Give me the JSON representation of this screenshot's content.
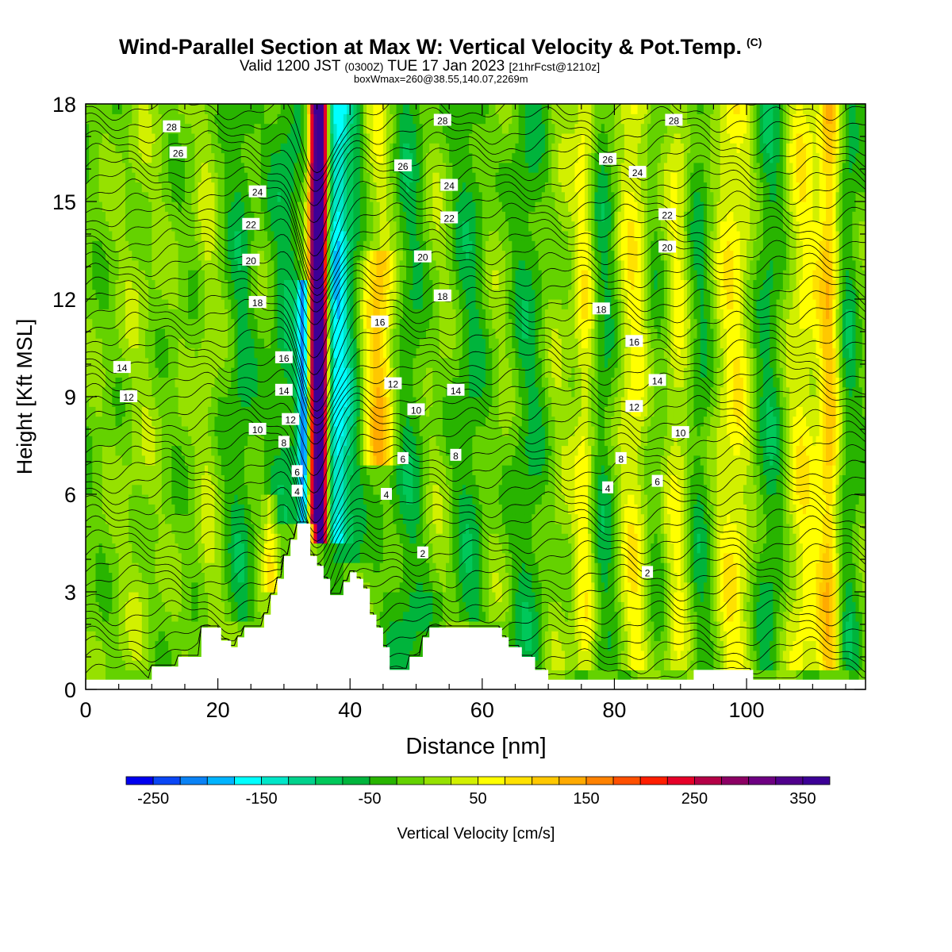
{
  "header": {
    "title": "Wind-Parallel Section at Max W: Vertical Velocity & Pot.Temp.",
    "title_mark": "(C)",
    "valid_prefix": "Valid 1200 JST",
    "valid_utc": "(0300Z)",
    "valid_date": "TUE 17 Jan 2023",
    "forecast": "[21hrFcst@1210z]",
    "boxinfo": "boxWmax=260@38.55,140.07,2269m"
  },
  "chart_data": {
    "type": "heatmap",
    "xlabel": "Distance [nm]",
    "ylabel": "Height [Kft MSL]",
    "xlim": [
      0,
      118
    ],
    "ylim": [
      0,
      18
    ],
    "x_ticks": [
      0,
      20,
      40,
      60,
      80,
      100
    ],
    "y_ticks": [
      0,
      3,
      6,
      9,
      12,
      15,
      18
    ],
    "colorbar": {
      "label": "Vertical Velocity [cm/s]",
      "tick_labels": [
        "-250",
        "-150",
        "-50",
        "50",
        "150",
        "250",
        "350"
      ],
      "tick_values": [
        -250,
        -150,
        -50,
        50,
        150,
        250,
        350
      ],
      "range": [
        -275,
        375
      ],
      "step": 25,
      "colors": [
        "#0000f0",
        "#0a46f5",
        "#0a82f5",
        "#00b4ff",
        "#00ffff",
        "#00e6c8",
        "#00d28c",
        "#00c85a",
        "#00b43c",
        "#28b400",
        "#64d200",
        "#96e100",
        "#d2f000",
        "#ffff00",
        "#ffe100",
        "#ffc800",
        "#ffaa00",
        "#ff8200",
        "#ff5000",
        "#ff1e00",
        "#e60028",
        "#b40046",
        "#8c0064",
        "#6e0082",
        "#50008c",
        "#3c0096"
      ]
    },
    "vertical_velocity_field": {
      "background": -10,
      "features": [
        {
          "x": 35.2,
          "width": 0.9,
          "y_from": 4.5,
          "y_to": 18,
          "value": 300
        },
        {
          "x": 36.0,
          "width": 0.7,
          "y_from": 4.5,
          "y_to": 18,
          "value": 240
        },
        {
          "x": 34.3,
          "width": 0.8,
          "y_from": 5.0,
          "y_to": 18,
          "value": 190
        },
        {
          "x": 33.0,
          "width": 0.9,
          "y_from": 5.0,
          "y_to": 12.5,
          "value": -190
        },
        {
          "x": 38.0,
          "width": 1.5,
          "y_from": 4.5,
          "y_to": 18,
          "value": -130
        },
        {
          "x": 40.0,
          "width": 2.0,
          "y_from": 4.0,
          "y_to": 18,
          "value": -65
        },
        {
          "x": 30.5,
          "width": 2.5,
          "y_from": 5.0,
          "y_to": 18,
          "value": -55
        },
        {
          "x": 44.5,
          "width": 2.5,
          "y_from": 7.0,
          "y_to": 13.5,
          "value": 130
        },
        {
          "x": 44.5,
          "width": 2.5,
          "y_from": 13.5,
          "y_to": 18,
          "value": 50
        },
        {
          "x": 49.0,
          "width": 3.0,
          "y_from": 0.5,
          "y_to": 18,
          "value": -50
        },
        {
          "x": 53.0,
          "width": 3.0,
          "y_from": 3.0,
          "y_to": 18,
          "value": 25
        },
        {
          "x": 58.0,
          "width": 3.0,
          "y_from": 2.0,
          "y_to": 18,
          "value": -45
        },
        {
          "x": 62.5,
          "width": 2.5,
          "y_from": 2.0,
          "y_to": 18,
          "value": 20
        },
        {
          "x": 67.0,
          "width": 3.0,
          "y_from": 0.5,
          "y_to": 18,
          "value": -45
        },
        {
          "x": 71.5,
          "width": 2.5,
          "y_from": 0.5,
          "y_to": 18,
          "value": 25
        },
        {
          "x": 75.5,
          "width": 1.5,
          "y_from": 0.5,
          "y_to": 18,
          "value": 70
        },
        {
          "x": 78.5,
          "width": 2.0,
          "y_from": 0.5,
          "y_to": 18,
          "value": -45
        },
        {
          "x": 83.0,
          "width": 2.5,
          "y_from": 0.5,
          "y_to": 18,
          "value": 75
        },
        {
          "x": 86.0,
          "width": 2.0,
          "y_from": 0.5,
          "y_to": 18,
          "value": -30
        },
        {
          "x": 89.5,
          "width": 2.0,
          "y_from": 0.5,
          "y_to": 18,
          "value": 60
        },
        {
          "x": 93.0,
          "width": 2.0,
          "y_from": 0.5,
          "y_to": 18,
          "value": -45
        },
        {
          "x": 98.0,
          "width": 3.0,
          "y_from": 0.5,
          "y_to": 18,
          "value": 75
        },
        {
          "x": 103.5,
          "width": 2.5,
          "y_from": 0.5,
          "y_to": 18,
          "value": -55
        },
        {
          "x": 108.5,
          "width": 3.0,
          "y_from": 0.5,
          "y_to": 18,
          "value": 70
        },
        {
          "x": 112.5,
          "width": 1.5,
          "y_from": 0.5,
          "y_to": 18,
          "value": 110
        },
        {
          "x": 115.5,
          "width": 1.5,
          "y_from": 0.5,
          "y_to": 18,
          "value": -45
        },
        {
          "x": 18.5,
          "width": 1.5,
          "y_from": 1.5,
          "y_to": 18,
          "value": 30
        },
        {
          "x": 23.5,
          "width": 2.0,
          "y_from": 2.0,
          "y_to": 18,
          "value": -45
        },
        {
          "x": 28.0,
          "width": 1.2,
          "y_from": 3.0,
          "y_to": 6.0,
          "value": 80
        },
        {
          "x": 8.0,
          "width": 3.0,
          "y_from": 0.5,
          "y_to": 18,
          "value": 20
        }
      ]
    },
    "terrain": [
      [
        0,
        0.3
      ],
      [
        10,
        0.3
      ],
      [
        10,
        0.7
      ],
      [
        14,
        0.7
      ],
      [
        14,
        1.0
      ],
      [
        17.5,
        1.0
      ],
      [
        17.5,
        1.9
      ],
      [
        20.5,
        1.9
      ],
      [
        20.5,
        1.5
      ],
      [
        22,
        1.5
      ],
      [
        22,
        1.3
      ],
      [
        23,
        1.3
      ],
      [
        23,
        1.6
      ],
      [
        24,
        1.6
      ],
      [
        24,
        1.9
      ],
      [
        27,
        1.9
      ],
      [
        27,
        2.3
      ],
      [
        28,
        2.3
      ],
      [
        28,
        2.9
      ],
      [
        29,
        2.9
      ],
      [
        29,
        3.4
      ],
      [
        30,
        3.4
      ],
      [
        30,
        4.1
      ],
      [
        31,
        4.1
      ],
      [
        31,
        4.6
      ],
      [
        32,
        4.6
      ],
      [
        32,
        5.1
      ],
      [
        34,
        5.1
      ],
      [
        34,
        4.1
      ],
      [
        35,
        4.1
      ],
      [
        35,
        3.8
      ],
      [
        36,
        3.8
      ],
      [
        36,
        3.4
      ],
      [
        37,
        3.4
      ],
      [
        37,
        2.9
      ],
      [
        39,
        2.9
      ],
      [
        39,
        3.3
      ],
      [
        40,
        3.3
      ],
      [
        40,
        3.6
      ],
      [
        41,
        3.6
      ],
      [
        41,
        3.4
      ],
      [
        42,
        3.4
      ],
      [
        42,
        3.1
      ],
      [
        43,
        3.1
      ],
      [
        43,
        2.3
      ],
      [
        44,
        2.3
      ],
      [
        44,
        1.9
      ],
      [
        45,
        1.9
      ],
      [
        45,
        1.3
      ],
      [
        46,
        1.3
      ],
      [
        46,
        0.6
      ],
      [
        49,
        0.6
      ],
      [
        49,
        1.0
      ],
      [
        51,
        1.0
      ],
      [
        51,
        1.6
      ],
      [
        52,
        1.6
      ],
      [
        52,
        1.9
      ],
      [
        63,
        1.9
      ],
      [
        63,
        1.6
      ],
      [
        64,
        1.6
      ],
      [
        64,
        1.3
      ],
      [
        66,
        1.3
      ],
      [
        66,
        1.0
      ],
      [
        68,
        1.0
      ],
      [
        68,
        0.6
      ],
      [
        70,
        0.6
      ],
      [
        70,
        0.3
      ],
      [
        92,
        0.3
      ],
      [
        92,
        0.6
      ],
      [
        101,
        0.6
      ],
      [
        101,
        0.3
      ],
      [
        118,
        0.3
      ]
    ],
    "theta_contour_labels": [
      {
        "label": "28",
        "x": 13,
        "y": 17.3
      },
      {
        "label": "26",
        "x": 14,
        "y": 16.5
      },
      {
        "label": "24",
        "x": 26,
        "y": 15.3
      },
      {
        "label": "22",
        "x": 25,
        "y": 14.3
      },
      {
        "label": "20",
        "x": 25,
        "y": 13.2
      },
      {
        "label": "18",
        "x": 26,
        "y": 11.9
      },
      {
        "label": "16",
        "x": 30,
        "y": 10.2
      },
      {
        "label": "14",
        "x": 30,
        "y": 9.2
      },
      {
        "label": "12",
        "x": 31,
        "y": 8.3
      },
      {
        "label": "10",
        "x": 26,
        "y": 8.0
      },
      {
        "label": "8",
        "x": 30,
        "y": 7.6
      },
      {
        "label": "6",
        "x": 32,
        "y": 6.7
      },
      {
        "label": "4",
        "x": 32,
        "y": 6.1
      },
      {
        "label": "14",
        "x": 5.5,
        "y": 9.9
      },
      {
        "label": "12",
        "x": 6.5,
        "y": 9.0
      },
      {
        "label": "28",
        "x": 54,
        "y": 17.5
      },
      {
        "label": "26",
        "x": 48,
        "y": 16.1
      },
      {
        "label": "24",
        "x": 55,
        "y": 15.5
      },
      {
        "label": "22",
        "x": 55,
        "y": 14.5
      },
      {
        "label": "20",
        "x": 51,
        "y": 13.3
      },
      {
        "label": "18",
        "x": 54,
        "y": 12.1
      },
      {
        "label": "16",
        "x": 44.5,
        "y": 11.3
      },
      {
        "label": "12",
        "x": 46.5,
        "y": 9.4
      },
      {
        "label": "14",
        "x": 56,
        "y": 9.2
      },
      {
        "label": "10",
        "x": 50,
        "y": 8.6
      },
      {
        "label": "6",
        "x": 48,
        "y": 7.1
      },
      {
        "label": "8",
        "x": 56,
        "y": 7.2
      },
      {
        "label": "4",
        "x": 45.5,
        "y": 6.0
      },
      {
        "label": "2",
        "x": 51,
        "y": 4.2
      },
      {
        "label": "28",
        "x": 89,
        "y": 17.5
      },
      {
        "label": "26",
        "x": 79,
        "y": 16.3
      },
      {
        "label": "24",
        "x": 83.5,
        "y": 15.9
      },
      {
        "label": "22",
        "x": 88,
        "y": 14.6
      },
      {
        "label": "20",
        "x": 88,
        "y": 13.6
      },
      {
        "label": "18",
        "x": 78,
        "y": 11.7
      },
      {
        "label": "16",
        "x": 83,
        "y": 10.7
      },
      {
        "label": "14",
        "x": 86.5,
        "y": 9.5
      },
      {
        "label": "12",
        "x": 83,
        "y": 8.7
      },
      {
        "label": "10",
        "x": 90,
        "y": 7.9
      },
      {
        "label": "8",
        "x": 81,
        "y": 7.1
      },
      {
        "label": "4",
        "x": 79,
        "y": 6.2
      },
      {
        "label": "6",
        "x": 86.5,
        "y": 6.4
      },
      {
        "label": "2",
        "x": 85,
        "y": 3.6
      }
    ]
  },
  "colors": {
    "contour_line": "#000000",
    "axis": "#000000",
    "background": "#ffffff"
  }
}
